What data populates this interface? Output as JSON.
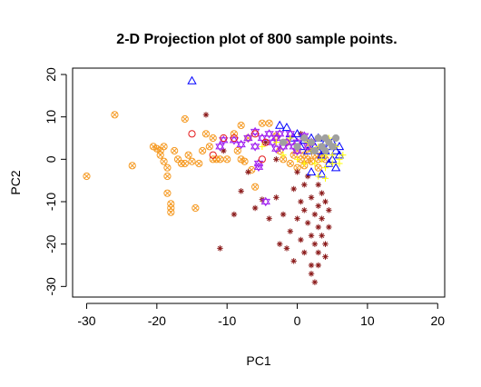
{
  "chart_data": {
    "type": "scatter",
    "title": "2-D Projection plot of 800 sample points.",
    "xlabel": "PC1",
    "ylabel": "PC2",
    "xlim": [
      -32,
      21
    ],
    "ylim": [
      -32.5,
      21.5
    ],
    "x_ticks": [
      -30,
      -20,
      -10,
      0,
      10,
      20
    ],
    "x_tick_labels": [
      "-30",
      "-20",
      "-10",
      "0",
      "10",
      "20"
    ],
    "y_ticks": [
      -30,
      -20,
      -10,
      0,
      10,
      20
    ],
    "y_tick_labels": [
      "-30",
      "-20",
      "-10",
      "0",
      "10",
      "20"
    ],
    "grid": false,
    "legend": false,
    "series": [
      {
        "marker": "circle-x",
        "color": "#f59a23",
        "points": [
          [
            -30,
            -4
          ],
          [
            -26,
            10.5
          ],
          [
            -23.5,
            -1.5
          ],
          [
            -20.5,
            3
          ],
          [
            -20,
            2.5
          ],
          [
            -19.5,
            1
          ],
          [
            -19,
            3
          ],
          [
            -19.5,
            2
          ],
          [
            -19,
            -0.5
          ],
          [
            -18.5,
            -2
          ],
          [
            -18.5,
            -4
          ],
          [
            -18.5,
            -8
          ],
          [
            -18,
            -10.5
          ],
          [
            -18,
            -11.5
          ],
          [
            -18,
            -12.5
          ],
          [
            -17.5,
            2
          ],
          [
            -17,
            0
          ],
          [
            -16.5,
            -1
          ],
          [
            -16,
            -1
          ],
          [
            -15.5,
            1
          ],
          [
            -16,
            9.5
          ],
          [
            -15,
            -0.5
          ],
          [
            -14.5,
            -11.5
          ],
          [
            -14,
            -1
          ],
          [
            -13.5,
            2
          ],
          [
            -13,
            6
          ],
          [
            -12.5,
            3
          ],
          [
            -12,
            5
          ],
          [
            -12,
            0
          ],
          [
            -11.5,
            0
          ],
          [
            -11,
            0
          ],
          [
            -10,
            0
          ],
          [
            -9,
            6
          ],
          [
            -8.5,
            2
          ],
          [
            -8,
            8
          ],
          [
            -8,
            0
          ],
          [
            -7.5,
            -0.5
          ],
          [
            -7,
            5
          ],
          [
            -6.5,
            -2.5
          ],
          [
            -6,
            -6.5
          ],
          [
            -5,
            8.5
          ],
          [
            -4,
            8.5
          ],
          [
            -3,
            5.5
          ],
          [
            -2.5,
            2
          ],
          [
            -2,
            0
          ],
          [
            -1.5,
            4
          ],
          [
            -1,
            -1
          ],
          [
            -0.5,
            1
          ],
          [
            0,
            2
          ],
          [
            0,
            -2
          ],
          [
            0.5,
            0
          ],
          [
            1,
            1
          ],
          [
            1,
            -1.5
          ],
          [
            1.5,
            2.5
          ],
          [
            1.5,
            0
          ],
          [
            2,
            -0.5
          ],
          [
            2.5,
            1
          ],
          [
            3,
            0
          ],
          [
            3,
            -2
          ],
          [
            3.5,
            1
          ],
          [
            4,
            0
          ]
        ]
      },
      {
        "marker": "asterisk",
        "color": "#8b1a1a",
        "points": [
          [
            -13,
            10.5
          ],
          [
            -8,
            -7.5
          ],
          [
            -6,
            -11.5
          ],
          [
            -5,
            -9.5
          ],
          [
            -4,
            -14
          ],
          [
            -3,
            -9
          ],
          [
            -2.5,
            -20
          ],
          [
            -2,
            -13
          ],
          [
            -1.5,
            -21
          ],
          [
            -1,
            -17
          ],
          [
            -0.5,
            -7
          ],
          [
            -0.5,
            -24
          ],
          [
            0,
            -14
          ],
          [
            0,
            -3
          ],
          [
            0.5,
            -10
          ],
          [
            0.5,
            -19
          ],
          [
            1,
            -6
          ],
          [
            1,
            -12
          ],
          [
            1,
            -22
          ],
          [
            1.5,
            -15
          ],
          [
            1.5,
            -4
          ],
          [
            2,
            -9
          ],
          [
            2,
            -18
          ],
          [
            2,
            -25
          ],
          [
            2,
            -27
          ],
          [
            2.5,
            -13
          ],
          [
            2.5,
            -20
          ],
          [
            2.5,
            -29
          ],
          [
            3,
            -6
          ],
          [
            3,
            -11
          ],
          [
            3,
            -16
          ],
          [
            3,
            -22
          ],
          [
            3,
            -25
          ],
          [
            3.5,
            -8
          ],
          [
            3.5,
            -14
          ],
          [
            3.5,
            -18
          ],
          [
            4,
            -10
          ],
          [
            4,
            -20
          ],
          [
            4,
            -23
          ],
          [
            4.5,
            -12
          ],
          [
            4.5,
            -16
          ],
          [
            -9,
            -13
          ],
          [
            -11,
            -21
          ],
          [
            -7,
            -3
          ],
          [
            -10.5,
            2
          ],
          [
            -3,
            0
          ],
          [
            -4.5,
            4
          ],
          [
            0.5,
            6
          ]
        ]
      },
      {
        "marker": "triangle",
        "color": "#0000ff",
        "points": [
          [
            -15,
            18.5
          ],
          [
            -2.5,
            8
          ],
          [
            -1.5,
            7.5
          ],
          [
            -1,
            6
          ],
          [
            -0.5,
            5
          ],
          [
            0,
            6
          ],
          [
            0.5,
            3
          ],
          [
            1,
            4.5
          ],
          [
            1.5,
            2
          ],
          [
            2,
            5
          ],
          [
            2.5,
            3
          ],
          [
            3,
            2
          ],
          [
            3,
            5
          ],
          [
            3.5,
            1
          ],
          [
            4,
            4
          ],
          [
            4,
            2
          ],
          [
            4.5,
            -1
          ],
          [
            4.5,
            3
          ],
          [
            5,
            0
          ],
          [
            5,
            4
          ],
          [
            5.5,
            2
          ],
          [
            5.5,
            -2
          ],
          [
            6,
            1
          ],
          [
            6,
            3
          ],
          [
            2,
            -3
          ],
          [
            3.5,
            -3.5
          ]
        ]
      },
      {
        "marker": "hexagram",
        "color": "#a020f0",
        "points": [
          [
            -11,
            3
          ],
          [
            -10.5,
            4.5
          ],
          [
            -9,
            4.5
          ],
          [
            -8,
            3.5
          ],
          [
            -7,
            5
          ],
          [
            -6,
            6.5
          ],
          [
            -5.5,
            -1
          ],
          [
            -5.5,
            -1.8
          ],
          [
            -5,
            5
          ],
          [
            -4.5,
            -10
          ],
          [
            -4,
            6
          ],
          [
            -3.5,
            4
          ],
          [
            -3,
            5
          ],
          [
            -2.5,
            6
          ],
          [
            -2,
            3
          ],
          [
            -1.5,
            4
          ],
          [
            -1,
            6
          ],
          [
            -0.5,
            3
          ],
          [
            0,
            4
          ],
          [
            1,
            5.5
          ],
          [
            1.5,
            3
          ],
          [
            2,
            4
          ],
          [
            0,
            2
          ],
          [
            -3,
            2.5
          ],
          [
            -6,
            3
          ]
        ]
      },
      {
        "marker": "circle",
        "color": "#e41a1c",
        "points": [
          [
            -15,
            6
          ],
          [
            -12,
            1
          ],
          [
            -10.5,
            5
          ],
          [
            -9,
            5
          ],
          [
            -6,
            6
          ],
          [
            -5,
            0
          ],
          [
            -4.5,
            4
          ]
        ]
      },
      {
        "marker": "plus",
        "color": "#ffff00",
        "points": [
          [
            -5,
            3
          ],
          [
            -3,
            4
          ],
          [
            -2,
            1
          ],
          [
            -1,
            5
          ],
          [
            0,
            0
          ],
          [
            1,
            -1
          ],
          [
            1.5,
            4
          ],
          [
            2,
            2
          ],
          [
            2.5,
            -1
          ],
          [
            3,
            3
          ],
          [
            3.5,
            0
          ],
          [
            4,
            1
          ],
          [
            4,
            -2
          ],
          [
            4.5,
            5
          ],
          [
            5,
            1
          ],
          [
            5,
            -1
          ],
          [
            5.5,
            3
          ],
          [
            6,
            0
          ],
          [
            6,
            -1
          ],
          [
            6.5,
            1
          ],
          [
            3,
            -4
          ],
          [
            4,
            -4.5
          ]
        ]
      },
      {
        "marker": "filled-circle",
        "color": "#a0a0a0",
        "points": [
          [
            -2,
            4
          ],
          [
            0,
            3
          ],
          [
            1,
            5
          ],
          [
            2,
            4
          ],
          [
            2.5,
            2
          ],
          [
            3,
            5
          ],
          [
            3.5,
            3
          ],
          [
            4,
            5
          ],
          [
            4,
            2
          ],
          [
            4.5,
            4
          ],
          [
            5,
            3
          ],
          [
            5.5,
            5
          ]
        ]
      }
    ]
  }
}
